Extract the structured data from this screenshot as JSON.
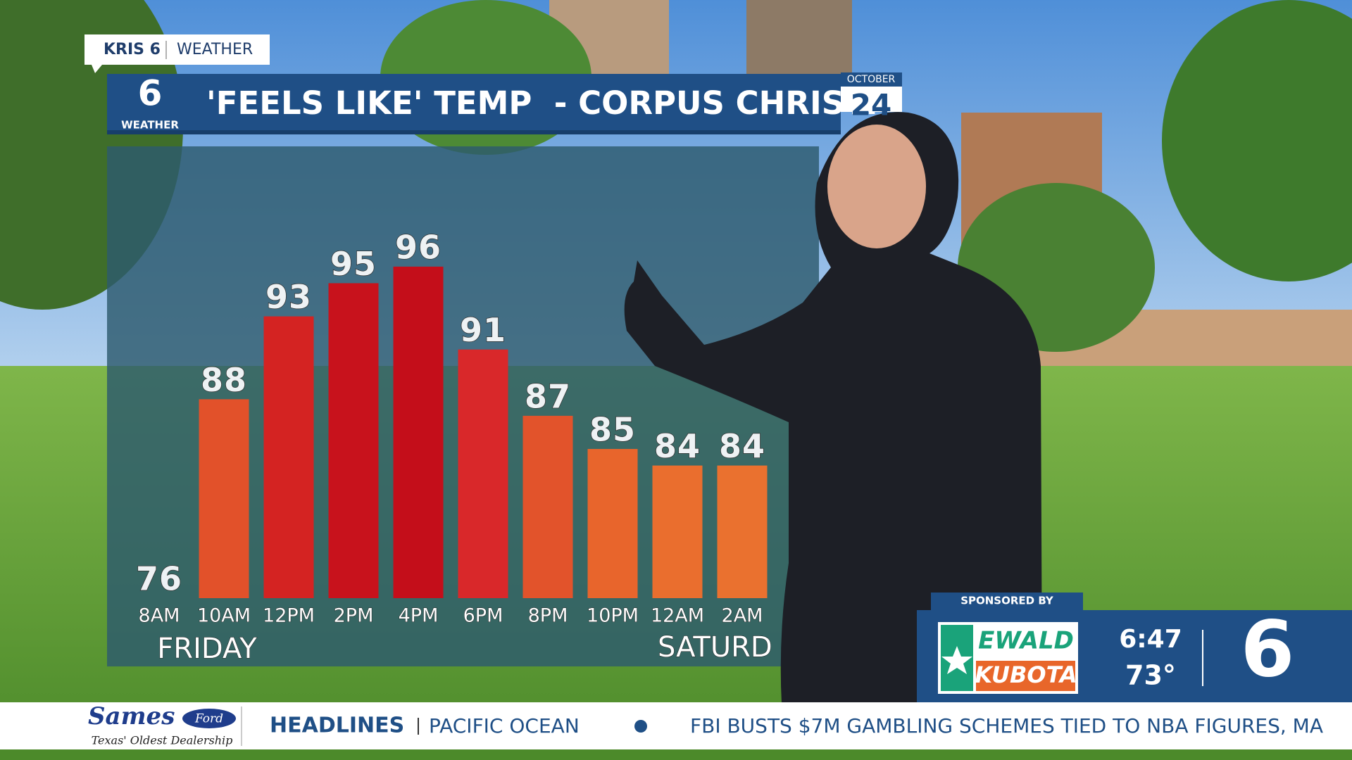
{
  "brand": {
    "station": "KRIS 6",
    "section": "WEATHER",
    "logo_number": "6",
    "logo_text": "WEATHER"
  },
  "date": {
    "month": "OCTOBER",
    "day": "24"
  },
  "chart_data": {
    "type": "bar",
    "title": "'FEELS LIKE' TEMP  - CORPUS CHRISTI",
    "categories": [
      "8AM",
      "10AM",
      "12PM",
      "2PM",
      "4PM",
      "6PM",
      "8PM",
      "10PM",
      "12AM",
      "2AM"
    ],
    "values": [
      76,
      88,
      93,
      95,
      96,
      91,
      87,
      85,
      84,
      84
    ],
    "colors": [
      "#e8822e",
      "#e2512a",
      "#d42322",
      "#c8121c",
      "#c40e1a",
      "#d9282a",
      "#e2532b",
      "#e8652c",
      "#ea6e2e",
      "#ea712f"
    ],
    "days": [
      "FRIDAY",
      "SATURD"
    ],
    "ylim": [
      76,
      103
    ]
  },
  "sponsor": {
    "label": "SPONSORED BY",
    "line1": "EWALD",
    "line2": "KUBOTA"
  },
  "status": {
    "time": "6:47",
    "temp": "73°",
    "channel": "6"
  },
  "ticker": {
    "advertiser": "Sames",
    "badge": "Ford",
    "tagline": "Texas' Oldest Dealership",
    "label": "HEADLINES",
    "items": [
      "PACIFIC OCEAN",
      "FBI BUSTS $7M GAMBLING SCHEMES TIED TO NBA FIGURES, MA"
    ]
  }
}
